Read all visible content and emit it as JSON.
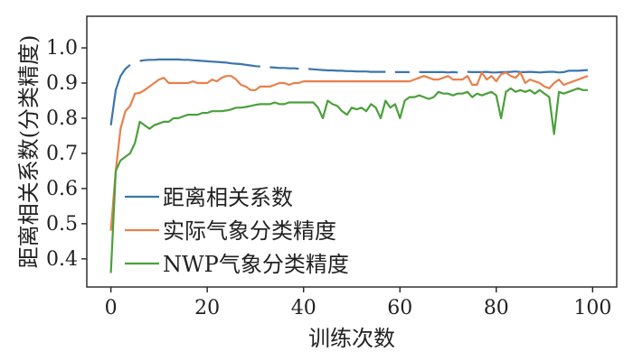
{
  "chart_data": {
    "type": "line",
    "xlabel": "训练次数",
    "ylabel": "距离相关系数(分类精度)",
    "xlim": [
      -5,
      105
    ],
    "ylim": [
      0.32,
      1.09
    ],
    "xticks": [
      0,
      20,
      40,
      60,
      80,
      100
    ],
    "yticks": [
      0.4,
      0.5,
      0.6,
      0.7,
      0.8,
      0.9,
      1.0
    ],
    "xtick_labels": [
      "0",
      "20",
      "40",
      "60",
      "80",
      "100"
    ],
    "ytick_labels": [
      "0.4",
      "0.5",
      "0.6",
      "0.7",
      "0.8",
      "0.9",
      "1.0"
    ],
    "legend_position": "lower-left",
    "grid": false,
    "series": [
      {
        "name": "距离相关系数",
        "color": "#3b75af",
        "values": [
          0.78,
          0.88,
          0.92,
          0.94,
          0.952,
          0.96,
          0.963,
          0.965,
          0.966,
          0.966,
          0.967,
          0.967,
          0.967,
          0.967,
          0.967,
          0.966,
          0.966,
          0.965,
          0.964,
          0.963,
          0.962,
          0.961,
          0.96,
          0.959,
          0.958,
          0.956,
          0.955,
          0.954,
          0.952,
          0.95,
          0.948,
          0.947,
          0.946,
          0.945,
          0.944,
          0.943,
          0.943,
          0.942,
          0.942,
          0.941,
          0.94,
          0.94,
          0.939,
          0.938,
          0.937,
          0.936,
          0.936,
          0.935,
          0.935,
          0.934,
          0.934,
          0.933,
          0.933,
          0.933,
          0.932,
          0.932,
          0.932,
          0.932,
          0.931,
          0.931,
          0.931,
          0.931,
          0.931,
          0.931,
          0.931,
          0.931,
          0.931,
          0.931,
          0.931,
          0.931,
          0.93,
          0.931,
          0.93,
          0.931,
          0.932,
          0.931,
          0.931,
          0.931,
          0.932,
          0.93,
          0.93,
          0.931,
          0.931,
          0.932,
          0.933,
          0.931,
          0.931,
          0.932,
          0.931,
          0.93,
          0.931,
          0.932,
          0.932,
          0.93,
          0.931,
          0.935,
          0.935,
          0.935,
          0.936,
          0.937
        ],
        "gaps": [
          [
            4,
            6
          ],
          [
            31,
            33
          ],
          [
            39,
            41
          ],
          [
            57,
            59
          ],
          [
            62,
            64
          ],
          [
            72,
            74
          ]
        ]
      },
      {
        "name": "实际气象分类精度",
        "color": "#e8804a",
        "values": [
          0.48,
          0.65,
          0.77,
          0.82,
          0.835,
          0.87,
          0.872,
          0.88,
          0.89,
          0.9,
          0.91,
          0.915,
          0.9,
          0.9,
          0.9,
          0.9,
          0.9,
          0.905,
          0.9,
          0.9,
          0.9,
          0.91,
          0.905,
          0.915,
          0.92,
          0.92,
          0.91,
          0.895,
          0.89,
          0.88,
          0.88,
          0.89,
          0.89,
          0.89,
          0.895,
          0.9,
          0.9,
          0.895,
          0.9,
          0.9,
          0.905,
          0.905,
          0.905,
          0.905,
          0.905,
          0.905,
          0.905,
          0.905,
          0.905,
          0.905,
          0.905,
          0.905,
          0.905,
          0.905,
          0.905,
          0.905,
          0.905,
          0.905,
          0.905,
          0.905,
          0.905,
          0.905,
          0.905,
          0.91,
          0.915,
          0.92,
          0.915,
          0.91,
          0.91,
          0.915,
          0.92,
          0.91,
          0.91,
          0.91,
          0.92,
          0.895,
          0.895,
          0.93,
          0.91,
          0.92,
          0.905,
          0.925,
          0.93,
          0.92,
          0.915,
          0.93,
          0.9,
          0.91,
          0.905,
          0.9,
          0.89,
          0.885,
          0.9,
          0.91,
          0.895,
          0.9,
          0.905,
          0.91,
          0.915,
          0.92
        ]
      },
      {
        "name": "NWP气象分类精度",
        "color": "#4aa03a",
        "values": [
          0.36,
          0.65,
          0.68,
          0.69,
          0.7,
          0.73,
          0.79,
          0.78,
          0.77,
          0.78,
          0.785,
          0.79,
          0.79,
          0.8,
          0.8,
          0.805,
          0.81,
          0.81,
          0.81,
          0.815,
          0.815,
          0.82,
          0.82,
          0.82,
          0.822,
          0.825,
          0.83,
          0.83,
          0.832,
          0.835,
          0.838,
          0.84,
          0.84,
          0.84,
          0.845,
          0.84,
          0.84,
          0.845,
          0.845,
          0.845,
          0.845,
          0.845,
          0.845,
          0.83,
          0.8,
          0.85,
          0.84,
          0.835,
          0.82,
          0.81,
          0.83,
          0.825,
          0.83,
          0.82,
          0.84,
          0.83,
          0.8,
          0.85,
          0.83,
          0.84,
          0.8,
          0.85,
          0.86,
          0.86,
          0.865,
          0.86,
          0.855,
          0.86,
          0.875,
          0.87,
          0.87,
          0.865,
          0.87,
          0.87,
          0.875,
          0.86,
          0.87,
          0.865,
          0.87,
          0.875,
          0.865,
          0.8,
          0.875,
          0.885,
          0.875,
          0.88,
          0.875,
          0.88,
          0.87,
          0.88,
          0.87,
          0.86,
          0.755,
          0.875,
          0.87,
          0.875,
          0.88,
          0.885,
          0.88,
          0.88
        ]
      }
    ]
  }
}
